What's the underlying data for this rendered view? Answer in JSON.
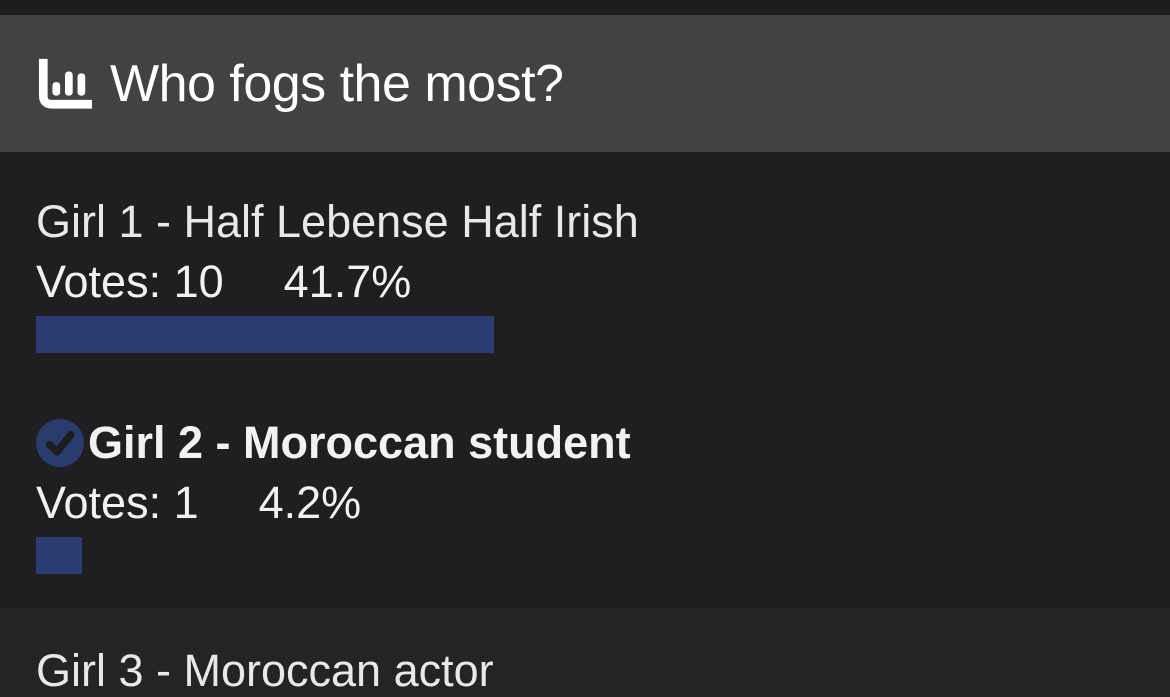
{
  "poll": {
    "title": "Who fogs the most?",
    "title_icon": "bar-chart",
    "options": [
      {
        "label": "Girl 1 - Half Lebense Half Irish",
        "votes_text": "Votes: 10",
        "percent_text": "41.7%",
        "percent_value": 41.7,
        "selected": false
      },
      {
        "label": "Girl 2 - Moroccan student",
        "votes_text": "Votes: 1",
        "percent_text": "4.2%",
        "percent_value": 4.2,
        "selected": true,
        "selected_icon": "check-circle"
      },
      {
        "label": "Girl 3 - Moroccan actor"
      }
    ],
    "colors": {
      "top_strip_background": "#1d1d1f",
      "header_background": "#424242",
      "body_background": "#1f1f21",
      "lower_background": "#242426",
      "bar_fill": "#2a3c72",
      "check_circle_fill": "#2a3b6e",
      "check_mark": "#1e1e1f",
      "title_text": "#ffffff",
      "option_text": "#e8e8e8",
      "votes_text": "#f1f1f1"
    }
  }
}
